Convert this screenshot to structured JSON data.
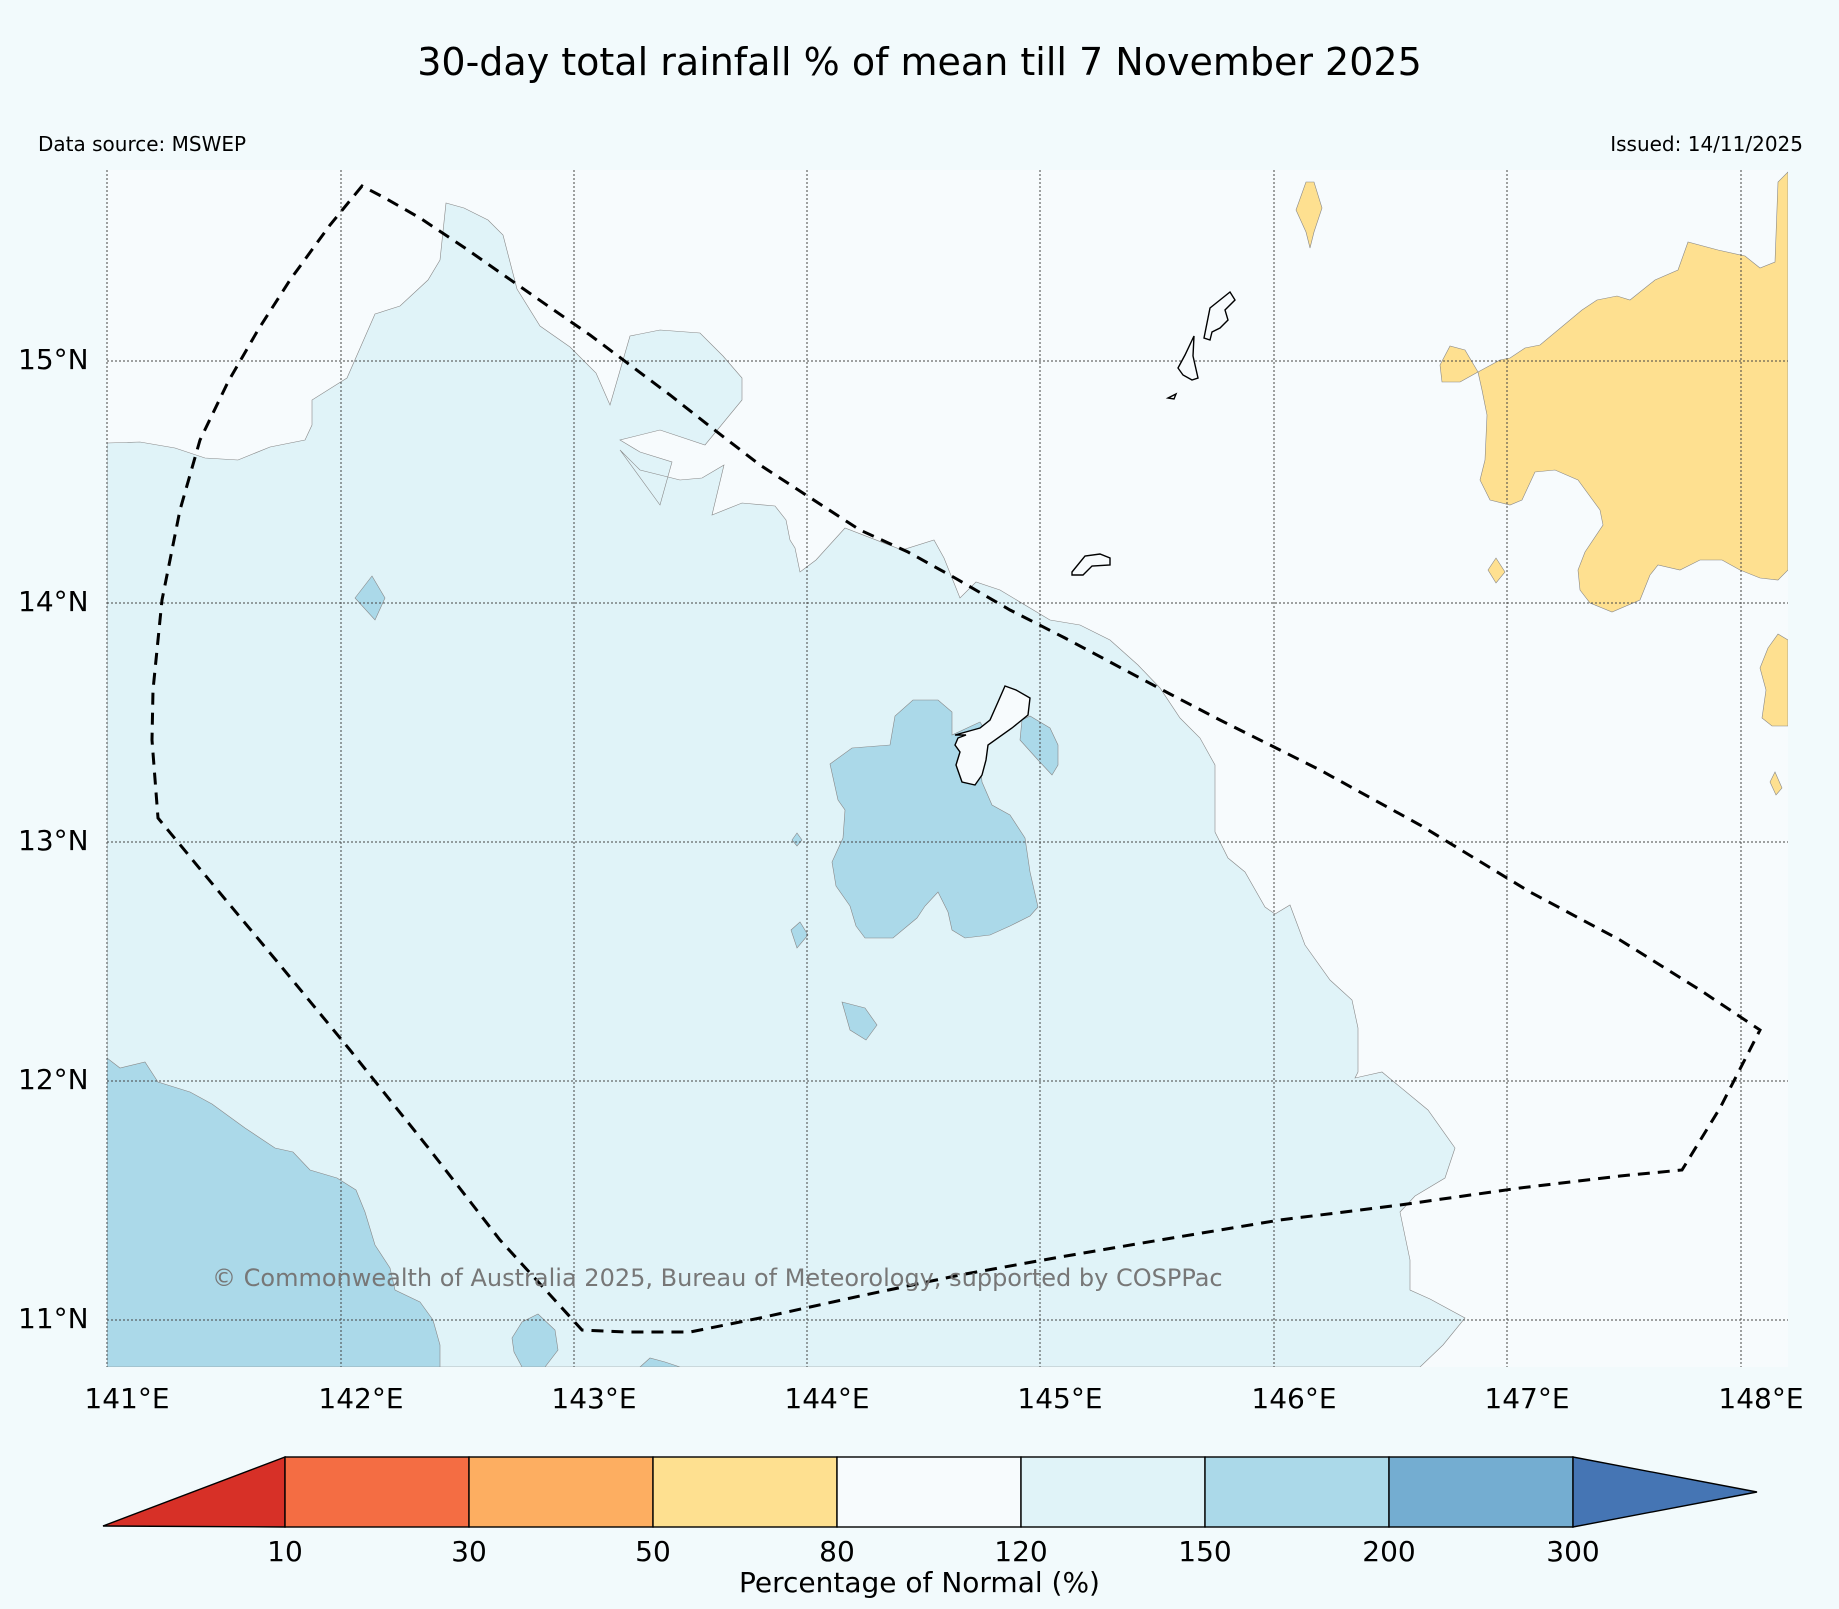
{
  "title": "30-day total rainfall % of mean till 7 November 2025",
  "data_source": "Data source: MSWEP",
  "issued": "Issued: 14/11/2025",
  "copyright": "© Commonwealth of Australia 2025, Bureau of Meteorology, supported by COSPPac",
  "lat_labels": [
    "15°N",
    "14°N",
    "13°N",
    "12°N",
    "11°N"
  ],
  "lon_labels": [
    "141°E",
    "142°E",
    "143°E",
    "144°E",
    "145°E",
    "146°E",
    "147°E",
    "148°E"
  ],
  "colorbar": {
    "label": "Percentage of Normal (%)",
    "ticks": [
      "10",
      "30",
      "50",
      "80",
      "120",
      "150",
      "200",
      "300"
    ],
    "colors": [
      "#d73027",
      "#f46d43",
      "#fdae61",
      "#fee090",
      "#f7fbfd",
      "#e0f3f8",
      "#abd9e9",
      "#74add1",
      "#4575b4"
    ]
  }
}
